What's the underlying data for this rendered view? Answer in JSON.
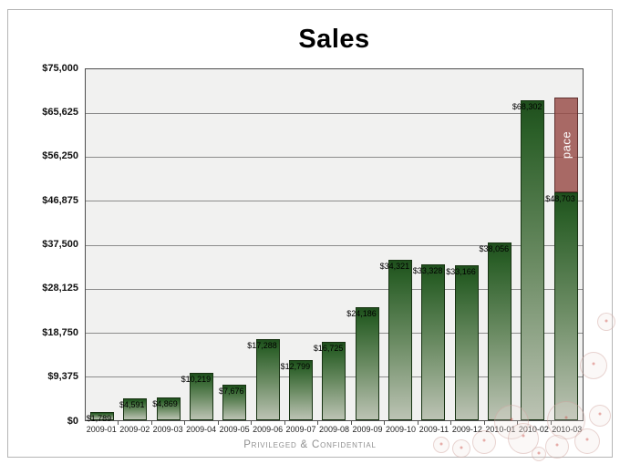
{
  "title": "Sales",
  "footer": {
    "text": "Privileged & Confidential"
  },
  "colors": {
    "bar_top": "#1f4f1d",
    "bar_mid": "#6c8c64",
    "bar_bottom": "#bcc3b4",
    "bar_border": "#173312",
    "pace_fill": "rgba(151,74,69,0.82)",
    "pace_border": "rgba(84,40,38,0.85)",
    "grid": "#8c8c8c",
    "plot_bg": "#f1f1f0",
    "plot_border": "#4d4d4d",
    "title_color": "#000000",
    "footer_color": "#8f8f8f"
  },
  "chart_data": {
    "type": "bar",
    "title": "Sales",
    "xlabel": "",
    "ylabel": "",
    "ylim": [
      0,
      75000
    ],
    "grid": true,
    "legend_position": "none",
    "categories": [
      "2009-01",
      "2009-02",
      "2009-03",
      "2009-04",
      "2009-05",
      "2009-06",
      "2009-07",
      "2009-08",
      "2009-09",
      "2009-10",
      "2009-11",
      "2009-12",
      "2010-01",
      "2010-02",
      "2010-03"
    ],
    "series": [
      {
        "name": "sales",
        "values": [
          1789,
          4591,
          4869,
          10219,
          7676,
          17288,
          12799,
          16725,
          24186,
          34321,
          33328,
          33166,
          38056,
          68302,
          48703
        ]
      }
    ],
    "value_labels": [
      "$1,789",
      "$4,591",
      "$4,869",
      "$10,219",
      "$7,676",
      "$17,288",
      "$12,799",
      "$16,725",
      "$24,186",
      "$34,321",
      "$33,328",
      "$33,166",
      "$38,056",
      "$68,302",
      "$48,703"
    ],
    "pace": {
      "category": "2010-03",
      "label": "pace",
      "from": 48703,
      "to": 69000
    },
    "yticks": [
      {
        "label": "$75,000",
        "value": 75000
      },
      {
        "label": "$65,625",
        "value": 65625
      },
      {
        "label": "$56,250",
        "value": 56250
      },
      {
        "label": "$46,875",
        "value": 46875
      },
      {
        "label": "$37,500",
        "value": 37500
      },
      {
        "label": "$28,125",
        "value": 28125
      },
      {
        "label": "$18,750",
        "value": 18750
      },
      {
        "label": "$9,375",
        "value": 9375
      },
      {
        "label": "$0",
        "value": 0
      }
    ]
  }
}
